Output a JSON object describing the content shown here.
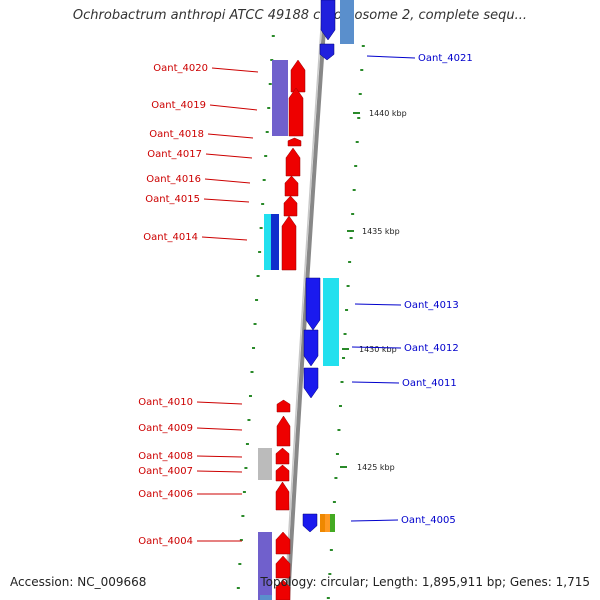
{
  "title": "Ochrobactrum anthropi ATCC 49188 chromosome 2, complete sequ...",
  "footer": {
    "accession": "Accession: NC_009668",
    "summary": "Topology: circular; Length: 1,895,911 bp; Genes: 1,715"
  },
  "colors": {
    "left_strand_label": "#cc0000",
    "right_strand_label": "#0000cc",
    "backbone": "#999999",
    "tick": "#228822"
  },
  "scale_labels": [
    {
      "name": "tick-1440",
      "text": "1440 kbp"
    },
    {
      "name": "tick-1435",
      "text": "1435 kbp"
    },
    {
      "name": "tick-1430",
      "text": "1430 kbp"
    },
    {
      "name": "tick-1425",
      "text": "1425 kbp"
    }
  ],
  "left_genes": [
    "Oant_4020",
    "Oant_4019",
    "Oant_4018",
    "Oant_4017",
    "Oant_4016",
    "Oant_4015",
    "Oant_4014",
    "Oant_4010",
    "Oant_4009",
    "Oant_4008",
    "Oant_4007",
    "Oant_4006",
    "Oant_4004"
  ],
  "right_genes": [
    "Oant_4021",
    "Oant_4013",
    "Oant_4012",
    "Oant_4011",
    "Oant_4005"
  ]
}
